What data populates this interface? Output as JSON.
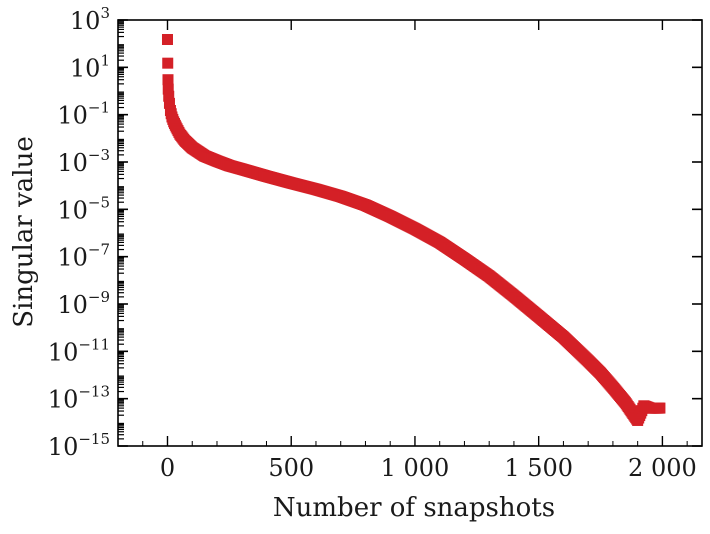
{
  "chart_data": {
    "type": "scatter",
    "xlabel": "Number of snapshots",
    "ylabel": "Singular value",
    "xlim": [
      -200,
      2160
    ],
    "ylim": [
      1e-15,
      1000
    ],
    "yscale": "log",
    "grid": false,
    "marker": "square",
    "colors": {
      "series": "#d42027",
      "axis": "#000000"
    },
    "x_ticks": [
      {
        "value": 0,
        "label": "0"
      },
      {
        "value": 500,
        "label": "500"
      },
      {
        "value": 1000,
        "label": "1 000"
      },
      {
        "value": 1500,
        "label": "1 500"
      },
      {
        "value": 2000,
        "label": "2 000"
      }
    ],
    "y_ticks": [
      {
        "exp": 3,
        "base": "10",
        "sup": "3"
      },
      {
        "exp": 1,
        "base": "10",
        "sup": "1"
      },
      {
        "exp": -1,
        "base": "10",
        "sup": "−1"
      },
      {
        "exp": -3,
        "base": "10",
        "sup": "−3"
      },
      {
        "exp": -5,
        "base": "10",
        "sup": "−5"
      },
      {
        "exp": -7,
        "base": "10",
        "sup": "−7"
      },
      {
        "exp": -9,
        "base": "10",
        "sup": "−9"
      },
      {
        "exp": -11,
        "base": "10",
        "sup": "−11"
      },
      {
        "exp": -13,
        "base": "10",
        "sup": "−13"
      },
      {
        "exp": -15,
        "base": "10",
        "sup": "−15"
      }
    ],
    "series": [
      {
        "x": [
          0,
          1,
          2,
          3,
          5,
          8,
          12,
          18,
          25,
          35,
          50,
          70,
          100,
          150,
          200,
          250,
          300,
          400,
          500,
          600,
          700,
          800,
          900,
          1000,
          1100,
          1200,
          1300,
          1400,
          1500,
          1600,
          1700,
          1750,
          1800,
          1850,
          1900,
          1925,
          1950,
          1990
        ],
        "y": [
          150,
          15,
          3,
          1.2,
          0.6,
          0.3,
          0.15,
          0.08,
          0.05,
          0.03,
          0.015,
          0.008,
          0.004,
          0.0018,
          0.0011,
          0.0007,
          0.0005,
          0.00025,
          0.00013,
          7e-05,
          3.5e-05,
          1.5e-05,
          5e-06,
          1.5e-06,
          4e-07,
          8e-08,
          1.5e-08,
          2.2e-09,
          3e-10,
          4e-11,
          4e-12,
          1.2e-12,
          3e-13,
          7e-14,
          1.2e-14,
          5e-14,
          4e-14,
          4e-14
        ]
      }
    ]
  }
}
